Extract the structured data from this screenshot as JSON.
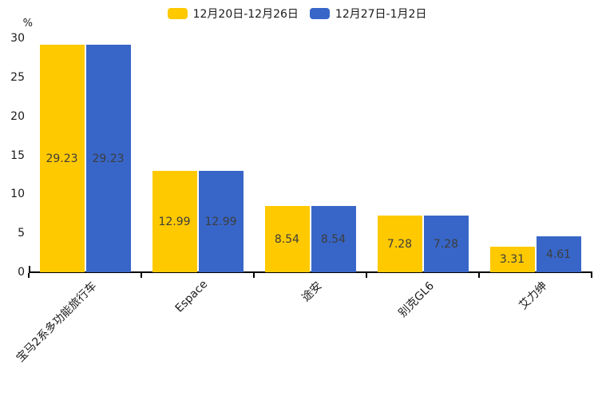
{
  "chart_data": {
    "type": "bar",
    "categories": [
      "宝马2系多功能旅行车",
      "Espace",
      "途安",
      "别克GL6",
      "艾力绅"
    ],
    "series": [
      {
        "name": "12月20日-12月26日",
        "color": "#FFC900",
        "values": [
          29.23,
          12.99,
          8.54,
          7.28,
          3.31
        ]
      },
      {
        "name": "12月27日-1月2日",
        "color": "#3866C8",
        "values": [
          29.23,
          12.99,
          8.54,
          7.28,
          4.61
        ]
      }
    ],
    "title": "",
    "xlabel": "",
    "ylabel": "%",
    "ylim": [
      0,
      30
    ],
    "yticks": [
      0,
      5,
      10,
      15,
      20,
      25,
      30
    ],
    "legend_position": "top-center",
    "grid": false,
    "value_labels": "inside-center",
    "value_label_color": "#3d3d3d",
    "axis_color": "#000000",
    "tick_label_color": "#1a1a1a",
    "xlabel_rotation_deg": 45
  }
}
